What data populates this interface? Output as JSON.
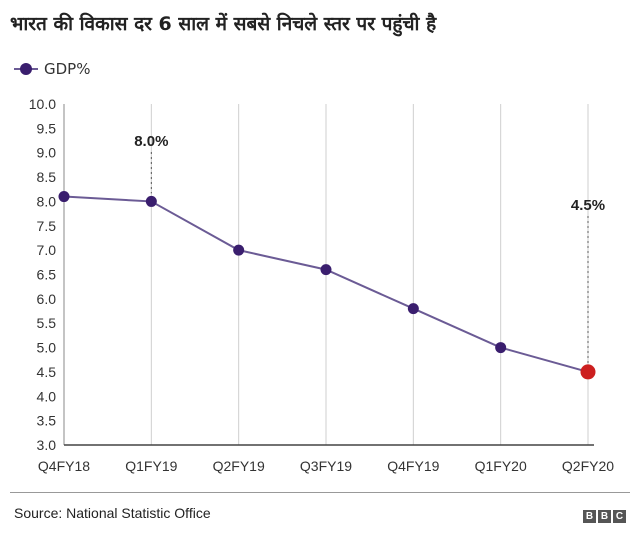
{
  "title": "भारत की विकास दर 6 साल में सबसे निचले स्तर पर पहुंची है",
  "source": "Source: National Statistic Office",
  "logo": [
    "B",
    "B",
    "C"
  ],
  "colors": {
    "line": "#6b5b95",
    "point": "#3a1e6e",
    "highlight": "#cc1f1f",
    "grid": "#cfcfcf",
    "axis": "#888888"
  },
  "chart_data": {
    "type": "line",
    "categories": [
      "Q4FY18",
      "Q1FY19",
      "Q2FY19",
      "Q3FY19",
      "Q4FY19",
      "Q1FY20",
      "Q2FY20"
    ],
    "series": [
      {
        "name": "GDP%",
        "values": [
          8.1,
          8.0,
          7.0,
          6.6,
          5.8,
          5.0,
          4.5
        ]
      }
    ],
    "ylim": [
      3.0,
      10.0
    ],
    "yticks": [
      "3.0",
      "3.5",
      "4.0",
      "4.5",
      "5.0",
      "5.5",
      "6.0",
      "6.5",
      "7.0",
      "7.5",
      "8.0",
      "8.5",
      "9.0",
      "9.5",
      "10.0"
    ],
    "annotations": [
      {
        "category": "Q1FY19",
        "text": "8.0%"
      },
      {
        "category": "Q2FY20",
        "text": "4.5%"
      }
    ],
    "highlight": "Q2FY20",
    "legend": "top-left",
    "grid": "vertical"
  }
}
